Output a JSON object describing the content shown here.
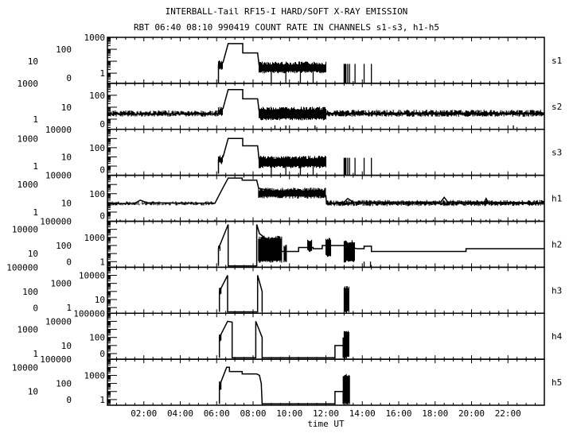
{
  "chart_data": {
    "type": "line",
    "title": "INTERBALL-Tail RF15-I HARD/SOFT X-RAY EMISSION",
    "subtitle": "RBT 06:40 08:10 990419  COUNT RATE IN CHANNELS s1-s3, h1-h5",
    "xlabel": "time UT",
    "xlim": [
      0,
      24
    ],
    "x_tick_labels": [
      {
        "t": 2,
        "label": "02:00"
      },
      {
        "t": 4,
        "label": "04:00"
      },
      {
        "t": 6,
        "label": "06:00"
      },
      {
        "t": 8,
        "label": "08:00"
      },
      {
        "t": 10,
        "label": "10:00"
      },
      {
        "t": 12,
        "label": "12:00"
      },
      {
        "t": 14,
        "label": "14:00"
      },
      {
        "t": 16,
        "label": "16:00"
      },
      {
        "t": 18,
        "label": "18:00"
      },
      {
        "t": 20,
        "label": "20:00"
      },
      {
        "t": 22,
        "label": "22:00"
      }
    ],
    "yscale": "log",
    "panels": [
      {
        "name": "s1",
        "ylim_log": [
          -0.85,
          3
        ],
        "y_tick_labels": [
          "1000",
          "100",
          "10",
          "1",
          "0"
        ],
        "line": [
          [
            6.1,
            0.15
          ],
          [
            6.1,
            5
          ],
          [
            6.35,
            8
          ],
          [
            6.63,
            300
          ],
          [
            7.43,
            300
          ],
          [
            7.43,
            50
          ],
          [
            8.25,
            50
          ],
          [
            8.33,
            5
          ]
        ],
        "bands": [
          [
            6.1,
            6.35,
            2,
            10
          ],
          [
            8.33,
            12.03,
            1.2,
            7
          ]
        ],
        "spikes": [
          [
            9.0,
            2
          ],
          [
            9.8,
            2
          ],
          [
            10.6,
            2
          ],
          [
            11.3,
            2
          ],
          [
            13.0,
            6
          ],
          [
            13.05,
            6
          ],
          [
            13.1,
            6
          ],
          [
            13.2,
            6
          ],
          [
            13.3,
            6
          ],
          [
            13.6,
            6
          ],
          [
            14.1,
            6
          ],
          [
            14.5,
            6
          ]
        ]
      },
      {
        "name": "s2",
        "ylim_log": [
          -0.85,
          3
        ],
        "y_tick_labels": [
          "1000",
          "100",
          "10",
          "1",
          "0"
        ],
        "line": [
          [
            6.1,
            3
          ],
          [
            6.35,
            8
          ],
          [
            6.63,
            300
          ],
          [
            7.43,
            300
          ],
          [
            7.43,
            50
          ],
          [
            8.25,
            50
          ],
          [
            8.33,
            5
          ]
        ],
        "bands": [
          [
            0,
            6.1,
            2,
            4
          ],
          [
            6.1,
            6.35,
            2,
            8
          ],
          [
            8.33,
            12.03,
            1,
            8
          ],
          [
            12.03,
            24,
            2,
            4.5
          ]
        ],
        "spikes": [
          [
            9.2,
            0.3
          ],
          [
            9.8,
            0.3
          ],
          [
            11.4,
            0.3
          ],
          [
            13.3,
            0.3
          ],
          [
            22.3,
            0.3
          ]
        ]
      },
      {
        "name": "s3",
        "ylim_log": [
          -1,
          4
        ],
        "y_tick_labels": [
          "10000",
          "1000",
          "100",
          "10",
          "1",
          "0"
        ],
        "line": [
          [
            6.1,
            0.15
          ],
          [
            6.1,
            5
          ],
          [
            6.35,
            10
          ],
          [
            6.63,
            1000
          ],
          [
            7.43,
            1000
          ],
          [
            7.43,
            160
          ],
          [
            8.25,
            160
          ],
          [
            8.33,
            5
          ]
        ],
        "bands": [
          [
            6.1,
            6.35,
            2,
            10
          ],
          [
            8.33,
            12.03,
            0.8,
            9
          ]
        ],
        "spikes": [
          [
            9.0,
            2
          ],
          [
            9.8,
            2
          ],
          [
            10.6,
            2
          ],
          [
            11.3,
            2
          ],
          [
            13.0,
            8
          ],
          [
            13.05,
            8
          ],
          [
            13.1,
            8
          ],
          [
            13.2,
            8
          ],
          [
            13.3,
            8
          ],
          [
            13.6,
            8
          ],
          [
            14.1,
            8
          ],
          [
            14.5,
            8
          ]
        ]
      },
      {
        "name": "h1",
        "ylim_log": [
          -1,
          4
        ],
        "y_tick_labels": [
          "10000",
          "1000",
          "100",
          "10",
          "1",
          "0"
        ],
        "line": [
          [
            0,
            8
          ],
          [
            1.5,
            9
          ],
          [
            1.8,
            20
          ],
          [
            2.2,
            10
          ],
          [
            5.9,
            9
          ],
          [
            6.3,
            300
          ],
          [
            6.63,
            5000
          ],
          [
            7.4,
            5000
          ],
          [
            7.4,
            3000
          ],
          [
            8.2,
            3000
          ],
          [
            8.3,
            400
          ],
          [
            9,
            200
          ],
          [
            10,
            120
          ],
          [
            11,
            80
          ],
          [
            12.0,
            60
          ],
          [
            12.03,
            8
          ],
          [
            13.0,
            12
          ],
          [
            13.2,
            30
          ],
          [
            13.5,
            12
          ],
          [
            18.3,
            12
          ],
          [
            18.5,
            40
          ],
          [
            18.7,
            12
          ],
          [
            20.7,
            12
          ],
          [
            20.8,
            30
          ],
          [
            20.9,
            12
          ],
          [
            24,
            10
          ]
        ],
        "bands": [
          [
            0,
            5.9,
            7,
            10
          ],
          [
            8.3,
            12.0,
            40,
            300
          ],
          [
            12.03,
            24,
            6,
            14
          ]
        ],
        "spikes": [
          [
            0.7,
            0.15
          ],
          [
            1.5,
            0.15
          ],
          [
            2.3,
            0.15
          ],
          [
            3.0,
            0.15
          ],
          [
            3.7,
            0.15
          ],
          [
            4.5,
            0.15
          ],
          [
            5.2,
            0.15
          ],
          [
            5.9,
            0.15
          ],
          [
            12.5,
            0.15
          ],
          [
            13.0,
            0.15
          ],
          [
            13.5,
            0.15
          ],
          [
            14.2,
            0.15
          ],
          [
            15.0,
            0.15
          ],
          [
            15.7,
            0.15
          ],
          [
            16.4,
            0.15
          ],
          [
            17.2,
            0.15
          ],
          [
            17.9,
            0.15
          ],
          [
            18.6,
            0.15
          ],
          [
            19.4,
            0.15
          ],
          [
            20.1,
            0.15
          ],
          [
            20.8,
            0.15
          ],
          [
            21.6,
            0.15
          ],
          [
            22.3,
            0.15
          ],
          [
            23.0,
            0.15
          ],
          [
            23.7,
            0.15
          ]
        ]
      },
      {
        "name": "h2",
        "ylim_log": [
          -0.7,
          5
        ],
        "y_tick_labels": [
          "100000",
          "10000",
          "1000",
          "100",
          "10",
          "1",
          "0"
        ],
        "line": [
          [
            6.1,
            0.3
          ],
          [
            6.1,
            40
          ],
          [
            6.63,
            40000
          ],
          [
            6.63,
            0.3
          ],
          [
            8.2,
            0.3
          ],
          [
            8.2,
            40000
          ],
          [
            8.35,
            3000
          ],
          [
            9.6,
            18
          ],
          [
            10.5,
            18
          ],
          [
            10.5,
            56
          ],
          [
            11.3,
            56
          ],
          [
            11.3,
            40
          ],
          [
            11.8,
            40
          ],
          [
            11.8,
            100
          ],
          [
            13.0,
            100
          ],
          [
            13.7,
            40
          ],
          [
            14.1,
            40
          ],
          [
            14.1,
            80
          ],
          [
            14.5,
            80
          ],
          [
            14.5,
            18
          ],
          [
            19.7,
            18
          ],
          [
            19.7,
            40
          ],
          [
            24,
            40
          ]
        ],
        "bands": [
          [
            6.1,
            6.2,
            30,
            100
          ],
          [
            8.3,
            9.6,
            1,
            1000
          ],
          [
            9.7,
            9.85,
            1,
            100
          ],
          [
            11.0,
            11.25,
            20,
            500
          ],
          [
            12.0,
            12.3,
            5,
            700
          ],
          [
            13.0,
            13.6,
            1,
            300
          ]
        ],
        "spikes": [
          [
            14.1,
            1
          ],
          [
            14.45,
            1
          ]
        ]
      },
      {
        "name": "h3",
        "ylim_log": [
          -0.7,
          5
        ],
        "y_tick_labels": [
          "100000",
          "10000",
          "1000",
          "100",
          "10",
          "1",
          "0"
        ],
        "line": [
          [
            6.15,
            0.3
          ],
          [
            6.15,
            100
          ],
          [
            6.6,
            10000
          ],
          [
            6.6,
            0.3
          ],
          [
            8.25,
            0.3
          ],
          [
            8.25,
            10000
          ],
          [
            8.5,
            100
          ],
          [
            8.5,
            0.3
          ]
        ],
        "bands": [
          [
            6.15,
            6.25,
            40,
            200
          ],
          [
            13.0,
            13.3,
            0.3,
            300
          ]
        ],
        "spikes": []
      },
      {
        "name": "h4",
        "ylim_log": [
          -0.7,
          5
        ],
        "y_tick_labels": [
          "100000",
          "10000",
          "1000",
          "100",
          "10",
          "1",
          "0"
        ],
        "line": [
          [
            6.15,
            0.3
          ],
          [
            6.15,
            100
          ],
          [
            6.6,
            10000
          ],
          [
            6.85,
            8000
          ],
          [
            6.85,
            0.3
          ],
          [
            8.15,
            0.3
          ],
          [
            8.15,
            10000
          ],
          [
            8.5,
            100
          ],
          [
            8.5,
            0.3
          ],
          [
            12.5,
            0.3
          ],
          [
            12.5,
            10
          ],
          [
            12.95,
            10
          ],
          [
            12.95,
            100
          ],
          [
            12.95,
            0.3
          ]
        ],
        "bands": [
          [
            6.15,
            6.25,
            40,
            200
          ],
          [
            13.0,
            13.3,
            0.3,
            500
          ]
        ],
        "spikes": []
      },
      {
        "name": "h5",
        "ylim_log": [
          -0.7,
          5
        ],
        "y_tick_labels": [
          "100000",
          "10000",
          "1000",
          "100",
          "10",
          "1",
          "0"
        ],
        "line": [
          [
            6.15,
            0.3
          ],
          [
            6.15,
            50
          ],
          [
            6.55,
            10000
          ],
          [
            6.7,
            10000
          ],
          [
            6.7,
            3000
          ],
          [
            7.4,
            3000
          ],
          [
            7.4,
            1500
          ],
          [
            8.2,
            1500
          ],
          [
            8.35,
            1000
          ],
          [
            8.45,
            100
          ],
          [
            8.5,
            0.3
          ],
          [
            12.5,
            0.3
          ],
          [
            12.5,
            10
          ],
          [
            12.95,
            10
          ],
          [
            12.95,
            0.3
          ]
        ],
        "bands": [
          [
            6.15,
            6.25,
            20,
            200
          ],
          [
            12.95,
            13.3,
            0.3,
            1000
          ]
        ],
        "spikes": []
      }
    ]
  }
}
